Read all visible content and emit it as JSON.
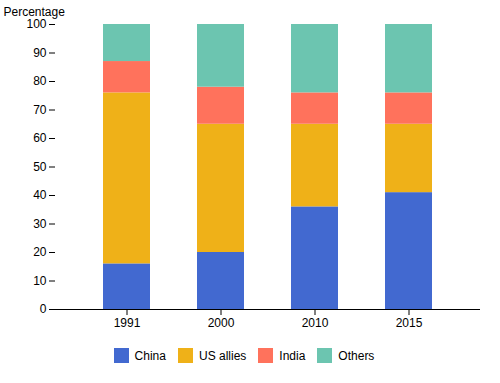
{
  "chart_data": {
    "type": "bar",
    "stacked": true,
    "categories": [
      "1991",
      "2000",
      "2010",
      "2015"
    ],
    "series": [
      {
        "name": "China",
        "values": [
          16,
          20,
          36,
          41
        ]
      },
      {
        "name": "US allies",
        "values": [
          60,
          45,
          29,
          24
        ]
      },
      {
        "name": "India",
        "values": [
          11,
          13,
          11,
          11
        ]
      },
      {
        "name": "Others",
        "values": [
          13,
          22,
          24,
          24
        ]
      }
    ],
    "ylabel": "Percentage",
    "ylim": [
      0,
      100
    ],
    "yticks": [
      0,
      10,
      20,
      30,
      40,
      50,
      60,
      70,
      80,
      90,
      100
    ],
    "legend": "bottom"
  }
}
